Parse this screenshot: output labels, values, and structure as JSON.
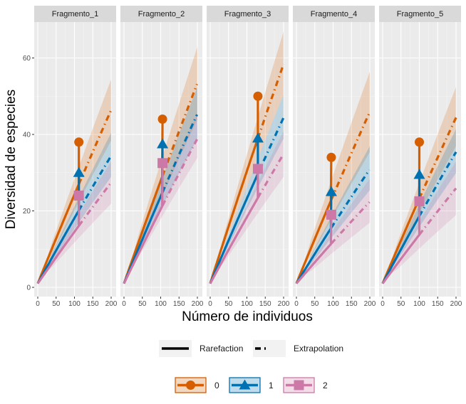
{
  "chart_data": {
    "type": "line",
    "title": "",
    "xlabel": "Número de individuos",
    "ylabel": "Diversidad de especies",
    "xlim": [
      0,
      200
    ],
    "ylim": [
      -2,
      70
    ],
    "x_ticks": [
      0,
      50,
      100,
      150,
      200
    ],
    "x_tick_labels": [
      "0",
      "50",
      "100",
      "150",
      "200"
    ],
    "y_ticks": [
      0,
      20,
      40,
      60
    ],
    "y_tick_labels": [
      "0",
      "20",
      "40",
      "60"
    ],
    "grid": true,
    "legend_position": "bottom",
    "linetype_legend": [
      {
        "key": "solid",
        "label": "Rarefaction"
      },
      {
        "key": "dashed",
        "label": "Extrapolation"
      }
    ],
    "order_legend": [
      {
        "label": "0",
        "color": "#d55e00",
        "shape": "circle"
      },
      {
        "label": "1",
        "color": "#0072b2",
        "shape": "triangle"
      },
      {
        "label": "2",
        "color": "#cc79a7",
        "shape": "square"
      }
    ],
    "panels": [
      {
        "name": "Fragmento_1",
        "n_obs": 112,
        "series": [
          {
            "order": "0",
            "observed": 38,
            "end": 45.5,
            "lower_end": 37.5,
            "upper_end": 53.5
          },
          {
            "order": "1",
            "observed": 30,
            "end": 33.5,
            "lower_end": 28,
            "upper_end": 39.5
          },
          {
            "order": "2",
            "observed": 24,
            "end": 26.5,
            "lower_end": 21,
            "upper_end": 32
          }
        ]
      },
      {
        "name": "Fragmento_2",
        "n_obs": 105,
        "series": [
          {
            "order": "0",
            "observed": 44,
            "end": 52.5,
            "lower_end": 43,
            "upper_end": 62
          },
          {
            "order": "1",
            "observed": 37.5,
            "end": 44.5,
            "lower_end": 38,
            "upper_end": 51.5
          },
          {
            "order": "2",
            "observed": 32.5,
            "end": 38,
            "lower_end": 33,
            "upper_end": 44.5
          }
        ]
      },
      {
        "name": "Fragmento_3",
        "n_obs": 130,
        "series": [
          {
            "order": "0",
            "observed": 50,
            "end": 57.5,
            "lower_end": 49.5,
            "upper_end": 66
          },
          {
            "order": "1",
            "observed": 39,
            "end": 43.5,
            "lower_end": 38,
            "upper_end": 49.5
          },
          {
            "order": "2",
            "observed": 31,
            "end": 34,
            "lower_end": 28,
            "upper_end": 40
          }
        ]
      },
      {
        "name": "Fragmento_4",
        "n_obs": 95,
        "series": [
          {
            "order": "0",
            "observed": 34,
            "end": 45,
            "lower_end": 34.5,
            "upper_end": 55.5
          },
          {
            "order": "1",
            "observed": 25,
            "end": 30,
            "lower_end": 24.5,
            "upper_end": 36
          },
          {
            "order": "2",
            "observed": 19,
            "end": 21.5,
            "lower_end": 16,
            "upper_end": 27.5
          }
        ]
      },
      {
        "name": "Fragmento_5",
        "n_obs": 100,
        "series": [
          {
            "order": "0",
            "observed": 38,
            "end": 43.5,
            "lower_end": 36,
            "upper_end": 51.5
          },
          {
            "order": "1",
            "observed": 29.5,
            "end": 34.5,
            "lower_end": 29,
            "upper_end": 40.5
          },
          {
            "order": "2",
            "observed": 22.5,
            "end": 25,
            "lower_end": 18,
            "upper_end": 32
          }
        ]
      }
    ]
  }
}
